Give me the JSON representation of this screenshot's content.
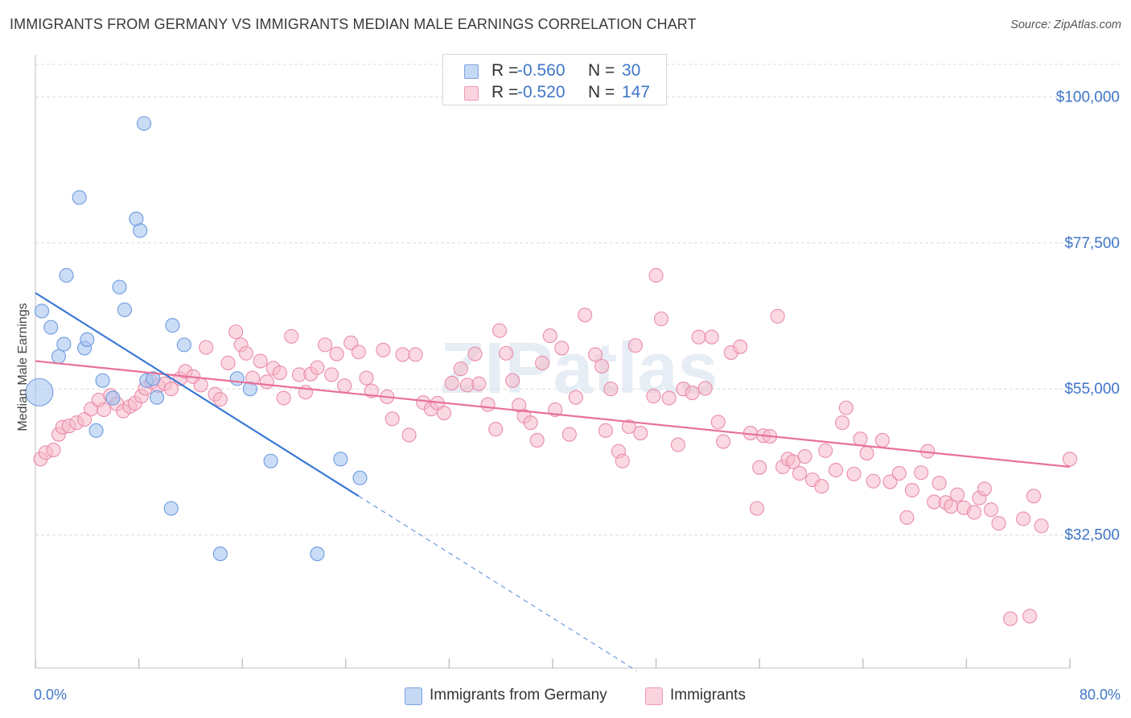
{
  "title": "IMMIGRANTS FROM GERMANY VS IMMIGRANTS MEDIAN MALE EARNINGS CORRELATION CHART",
  "source": "Source: ZipAtlas.com",
  "watermark": "ZIPatlas",
  "colors": {
    "blue": "#4a7fd4",
    "blue_fill": "#a8c6f0",
    "pink": "#e8719a",
    "pink_fill": "#f6b9cb",
    "axis_text": "#3f76c8",
    "grid": "#d9d9d9"
  },
  "legend": {
    "rows": [
      {
        "r_label": "R =",
        "r_value": "-0.560",
        "n_label": "N =",
        "n_value": "30"
      },
      {
        "r_label": "R =",
        "r_value": "-0.520",
        "n_label": "N =",
        "n_value": "147"
      }
    ]
  },
  "bottom_legend": {
    "germany": "Immigrants from Germany",
    "immigrants": "Immigrants"
  },
  "chart_data": {
    "type": "scatter",
    "title": "IMMIGRANTS FROM GERMANY VS IMMIGRANTS MEDIAN MALE EARNINGS CORRELATION CHART",
    "xlabel": "",
    "ylabel": "Median Male Earnings",
    "xlim": [
      0,
      80
    ],
    "ylim": [
      12000,
      105000
    ],
    "x_tick_labels": [
      "0.0%",
      "80.0%"
    ],
    "y_ticks": [
      {
        "value": 32500,
        "label": "$32,500"
      },
      {
        "value": 55000,
        "label": "$55,000"
      },
      {
        "value": 77500,
        "label": "$77,500"
      },
      {
        "value": 100000,
        "label": "$100,000"
      }
    ],
    "grid": true,
    "legend_position": "top-center",
    "series": [
      {
        "name": "Immigrants from Germany",
        "color": "#4a7fd4",
        "trend": {
          "x0": 0,
          "y0": 69800,
          "x1": 25,
          "y1": 38500,
          "dashed_to_x": 46.5
        },
        "points": [
          [
            0.3,
            54500
          ],
          [
            0.5,
            67000
          ],
          [
            1.2,
            64500
          ],
          [
            1.8,
            60000
          ],
          [
            2.2,
            61900
          ],
          [
            2.4,
            72500
          ],
          [
            3.4,
            84500
          ],
          [
            3.8,
            61300
          ],
          [
            4.0,
            62600
          ],
          [
            4.7,
            48600
          ],
          [
            5.2,
            56300
          ],
          [
            6.0,
            53600
          ],
          [
            6.5,
            70700
          ],
          [
            6.9,
            67200
          ],
          [
            7.8,
            81200
          ],
          [
            8.1,
            79400
          ],
          [
            8.4,
            95900
          ],
          [
            8.6,
            56300
          ],
          [
            9.4,
            53700
          ],
          [
            10.5,
            36600
          ],
          [
            10.6,
            64800
          ],
          [
            11.5,
            61800
          ],
          [
            14.3,
            29600
          ],
          [
            15.6,
            56600
          ],
          [
            16.6,
            55000
          ],
          [
            18.2,
            43900
          ],
          [
            21.8,
            29600
          ],
          [
            23.6,
            44200
          ],
          [
            25.1,
            41300
          ],
          [
            9.1,
            56600
          ]
        ]
      },
      {
        "name": "Immigrants",
        "color": "#e8719a",
        "trend": {
          "x0": 0,
          "y0": 59300,
          "x1": 80,
          "y1": 43000
        },
        "points": [
          [
            0.4,
            44200
          ],
          [
            0.8,
            45200
          ],
          [
            1.4,
            45600
          ],
          [
            1.8,
            48000
          ],
          [
            2.1,
            49100
          ],
          [
            2.6,
            49300
          ],
          [
            3.2,
            49800
          ],
          [
            3.8,
            50300
          ],
          [
            4.3,
            51900
          ],
          [
            4.9,
            53300
          ],
          [
            5.3,
            51800
          ],
          [
            5.8,
            54000
          ],
          [
            6.3,
            52700
          ],
          [
            6.8,
            51600
          ],
          [
            7.3,
            52300
          ],
          [
            7.7,
            52800
          ],
          [
            8.2,
            53900
          ],
          [
            8.5,
            55100
          ],
          [
            9.0,
            56100
          ],
          [
            9.5,
            55500
          ],
          [
            10.0,
            55800
          ],
          [
            10.5,
            55000
          ],
          [
            11.2,
            56600
          ],
          [
            11.6,
            57700
          ],
          [
            12.2,
            56900
          ],
          [
            12.8,
            55600
          ],
          [
            13.2,
            61400
          ],
          [
            13.9,
            54200
          ],
          [
            14.3,
            53400
          ],
          [
            14.9,
            59000
          ],
          [
            15.5,
            63800
          ],
          [
            15.9,
            61800
          ],
          [
            16.3,
            60500
          ],
          [
            16.8,
            56700
          ],
          [
            17.4,
            59300
          ],
          [
            17.9,
            56100
          ],
          [
            18.4,
            58200
          ],
          [
            18.9,
            57500
          ],
          [
            19.2,
            53600
          ],
          [
            19.8,
            63100
          ],
          [
            20.4,
            57200
          ],
          [
            20.9,
            54500
          ],
          [
            21.3,
            57300
          ],
          [
            21.8,
            58300
          ],
          [
            22.4,
            61800
          ],
          [
            22.9,
            57200
          ],
          [
            23.3,
            60400
          ],
          [
            23.9,
            55500
          ],
          [
            24.4,
            62100
          ],
          [
            25.0,
            60700
          ],
          [
            25.6,
            56700
          ],
          [
            26.0,
            54700
          ],
          [
            26.9,
            61000
          ],
          [
            27.2,
            53800
          ],
          [
            27.6,
            50400
          ],
          [
            28.4,
            60300
          ],
          [
            28.9,
            47900
          ],
          [
            29.4,
            60300
          ],
          [
            30.0,
            52900
          ],
          [
            30.6,
            51900
          ],
          [
            31.1,
            52800
          ],
          [
            31.6,
            51300
          ],
          [
            32.2,
            55900
          ],
          [
            32.9,
            58100
          ],
          [
            33.4,
            55600
          ],
          [
            34.0,
            60400
          ],
          [
            34.3,
            55800
          ],
          [
            35.0,
            52600
          ],
          [
            35.6,
            48800
          ],
          [
            35.9,
            64000
          ],
          [
            36.4,
            60500
          ],
          [
            36.9,
            56300
          ],
          [
            37.4,
            52500
          ],
          [
            37.8,
            50800
          ],
          [
            38.3,
            49800
          ],
          [
            38.8,
            47100
          ],
          [
            39.2,
            59000
          ],
          [
            39.8,
            63200
          ],
          [
            40.2,
            51800
          ],
          [
            40.7,
            61300
          ],
          [
            41.3,
            48000
          ],
          [
            41.8,
            53700
          ],
          [
            42.5,
            66400
          ],
          [
            43.3,
            60300
          ],
          [
            43.8,
            58500
          ],
          [
            44.1,
            48600
          ],
          [
            44.5,
            55000
          ],
          [
            45.1,
            45400
          ],
          [
            45.4,
            43900
          ],
          [
            45.9,
            49200
          ],
          [
            46.4,
            61700
          ],
          [
            46.8,
            48200
          ],
          [
            47.8,
            53900
          ],
          [
            48.0,
            72500
          ],
          [
            48.4,
            65800
          ],
          [
            49.0,
            53600
          ],
          [
            49.7,
            46400
          ],
          [
            50.1,
            55000
          ],
          [
            50.8,
            54400
          ],
          [
            51.3,
            63000
          ],
          [
            51.8,
            55100
          ],
          [
            52.3,
            63000
          ],
          [
            52.8,
            49900
          ],
          [
            53.2,
            46900
          ],
          [
            53.8,
            60600
          ],
          [
            54.5,
            61500
          ],
          [
            55.3,
            48200
          ],
          [
            55.8,
            36600
          ],
          [
            56.0,
            42900
          ],
          [
            56.3,
            47800
          ],
          [
            56.8,
            47700
          ],
          [
            57.4,
            66200
          ],
          [
            57.8,
            43000
          ],
          [
            58.2,
            44200
          ],
          [
            58.6,
            43800
          ],
          [
            59.1,
            42000
          ],
          [
            59.5,
            44600
          ],
          [
            60.1,
            41000
          ],
          [
            60.8,
            40000
          ],
          [
            61.1,
            45500
          ],
          [
            61.9,
            42500
          ],
          [
            62.4,
            49800
          ],
          [
            62.7,
            52100
          ],
          [
            63.3,
            41900
          ],
          [
            63.8,
            47300
          ],
          [
            64.3,
            45100
          ],
          [
            64.8,
            40800
          ],
          [
            65.5,
            47100
          ],
          [
            66.1,
            40700
          ],
          [
            66.8,
            42000
          ],
          [
            67.4,
            35200
          ],
          [
            67.8,
            39400
          ],
          [
            68.5,
            42100
          ],
          [
            69.0,
            45400
          ],
          [
            69.5,
            37600
          ],
          [
            69.9,
            40500
          ],
          [
            70.4,
            37500
          ],
          [
            70.8,
            36900
          ],
          [
            71.3,
            38700
          ],
          [
            71.8,
            36700
          ],
          [
            72.6,
            36000
          ],
          [
            73.0,
            38200
          ],
          [
            73.4,
            39600
          ],
          [
            73.9,
            36400
          ],
          [
            74.5,
            34300
          ],
          [
            75.4,
            19600
          ],
          [
            76.4,
            35000
          ],
          [
            76.9,
            20000
          ],
          [
            77.8,
            33900
          ],
          [
            80.0,
            44200
          ],
          [
            77.2,
            38500
          ]
        ]
      }
    ]
  }
}
